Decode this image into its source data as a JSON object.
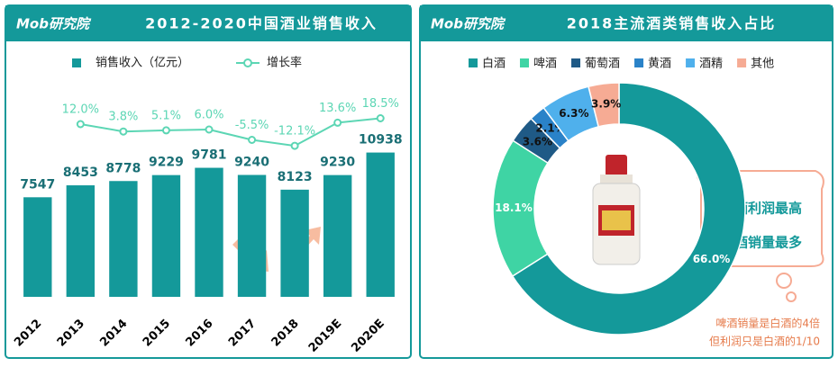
{
  "header": {
    "logo": "Mob研究院"
  },
  "chart_data": [
    {
      "type": "bar",
      "title": "2012-2020中国酒业销售收入",
      "categories": [
        "2012",
        "2013",
        "2014",
        "2015",
        "2016",
        "2017",
        "2018",
        "2019E",
        "2020E"
      ],
      "series": [
        {
          "name": "销售收入（亿元）",
          "type": "bar",
          "color": "#14999a",
          "values": [
            7547,
            8453,
            8778,
            9229,
            9781,
            9240,
            8123,
            9230,
            10938
          ]
        },
        {
          "name": "增长率",
          "type": "line",
          "axis": "y2",
          "color": "#5cd6b4",
          "values": [
            null,
            12.0,
            3.8,
            5.1,
            6.0,
            -5.5,
            -12.1,
            13.6,
            18.5
          ],
          "value_labels": [
            null,
            "12.0%",
            "3.8%",
            "5.1%",
            "6.0%",
            "-5.5%",
            "-12.1%",
            "13.6%",
            "18.5%"
          ]
        }
      ],
      "ylim": [
        0,
        15000
      ],
      "y2lim": [
        -180,
        40
      ]
    },
    {
      "type": "donut",
      "title": "2018主流酒类销售收入占比",
      "categories": [
        "白酒",
        "啤酒",
        "葡萄酒",
        "黄酒",
        "酒精",
        "其他"
      ],
      "values": [
        66.0,
        18.1,
        3.6,
        2.1,
        6.3,
        3.9
      ],
      "value_labels": [
        "66.0%",
        "18.1%",
        "3.6%",
        "2.1%",
        "6.3%",
        "3.9%"
      ],
      "colors": [
        "#14999a",
        "#3fd4a4",
        "#1f5a86",
        "#2a82c8",
        "#4fb0ec",
        "#f6ab94"
      ],
      "annotations": [
        "白酒利润最高",
        "啤酒销量最多",
        "啤酒销量是白酒的4倍",
        "但利润只是白酒的1/10"
      ]
    }
  ]
}
